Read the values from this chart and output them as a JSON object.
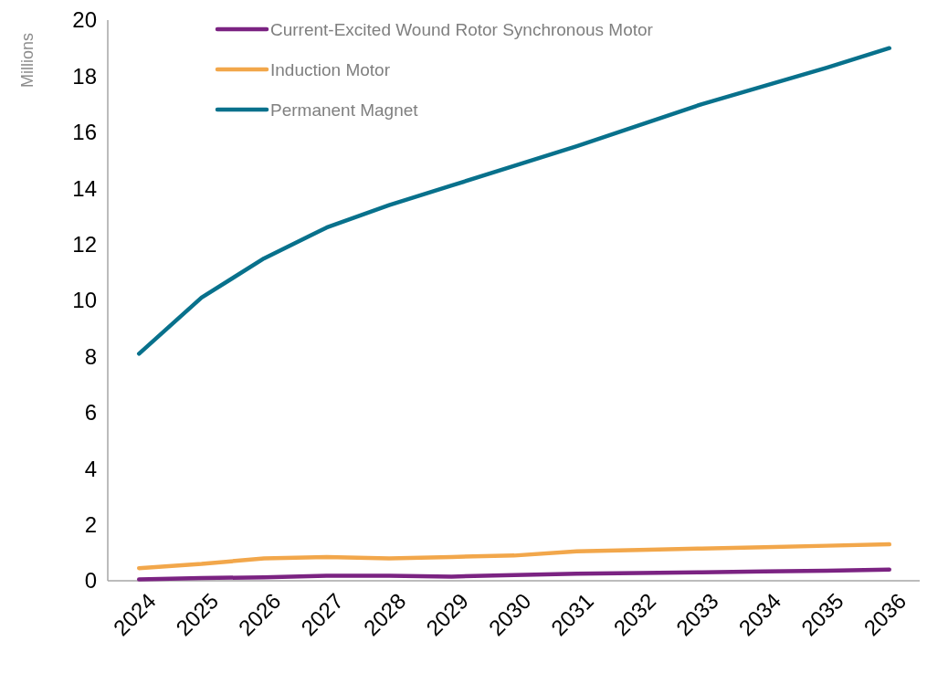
{
  "chart_data": {
    "type": "line",
    "ylabel": "Millions",
    "categories": [
      "2024",
      "2025",
      "2026",
      "2027",
      "2028",
      "2029",
      "2030",
      "2031",
      "2032",
      "2033",
      "2034",
      "2035",
      "2036"
    ],
    "series": [
      {
        "name": "Current-Excited Wound Rotor Synchronous Motor",
        "color": "#7b2382",
        "values": [
          0.05,
          0.1,
          0.12,
          0.18,
          0.18,
          0.15,
          0.2,
          0.25,
          0.28,
          0.3,
          0.33,
          0.36,
          0.4
        ]
      },
      {
        "name": "Induction Motor",
        "color": "#f2a74b",
        "values": [
          0.45,
          0.6,
          0.8,
          0.85,
          0.8,
          0.85,
          0.9,
          1.05,
          1.1,
          1.15,
          1.2,
          1.25,
          1.3
        ]
      },
      {
        "name": "Permanent Magnet",
        "color": "#08718c",
        "values": [
          8.1,
          10.1,
          11.5,
          12.6,
          13.4,
          14.1,
          14.8,
          15.5,
          16.25,
          17.0,
          17.65,
          18.3,
          19.0
        ]
      }
    ],
    "ylim": [
      0,
      20
    ],
    "yticks": [
      0,
      2,
      4,
      6,
      8,
      10,
      12,
      14,
      16,
      18,
      20
    ],
    "grid": false,
    "legend": "top",
    "marker": "none",
    "line_style": "solid"
  }
}
